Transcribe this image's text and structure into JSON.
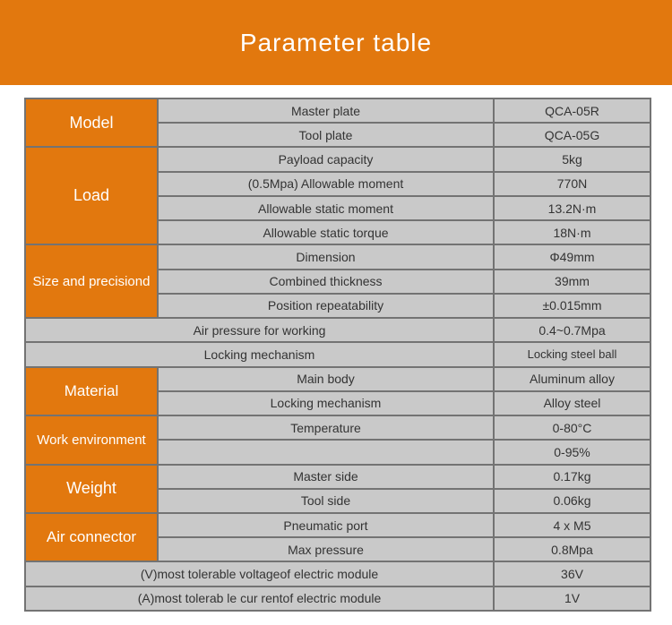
{
  "header": {
    "title": "Parameter table"
  },
  "colors": {
    "accent": "#e2780e",
    "cell_bg": "#c9c9c9",
    "border": "#737373",
    "text": "#333333",
    "title_text": "#ffffff"
  },
  "table": {
    "groups": [
      {
        "label": "Model",
        "rows": [
          {
            "param": "Master plate",
            "value": "QCA-05R"
          },
          {
            "param": "Tool plate",
            "value": "QCA-05G"
          }
        ]
      },
      {
        "label": "Load",
        "rows": [
          {
            "param": "Payload capacity",
            "value": "5kg"
          },
          {
            "param": "(0.5Mpa) Allowable moment",
            "value": "770N"
          },
          {
            "param": "Allowable static moment",
            "value": "13.2N·m"
          },
          {
            "param": "Allowable static torque",
            "value": "18N·m"
          }
        ]
      },
      {
        "label": "Size and precisiond",
        "rows": [
          {
            "param": "Dimension",
            "value": "Φ49mm"
          },
          {
            "param": "Combined thickness",
            "value": "39mm"
          },
          {
            "param": "Position repeatability",
            "value": "±0.015mm"
          }
        ]
      },
      {
        "label": null,
        "rows": [
          {
            "param": "Air pressure for working",
            "value": "0.4~0.7Mpa"
          }
        ]
      },
      {
        "label": null,
        "rows": [
          {
            "param": "Locking mechanism",
            "value": "Locking steel ball"
          }
        ]
      },
      {
        "label": "Material",
        "rows": [
          {
            "param": "Main body",
            "value": "Aluminum alloy"
          },
          {
            "param": "Locking mechanism",
            "value": "Alloy steel"
          }
        ]
      },
      {
        "label": "Work environment",
        "rows": [
          {
            "param": "Temperature",
            "value": "0-80°C"
          },
          {
            "param": "",
            "value": "0-95%"
          }
        ]
      },
      {
        "label": "Weight",
        "rows": [
          {
            "param": "Master side",
            "value": "0.17kg"
          },
          {
            "param": "Tool side",
            "value": "0.06kg"
          }
        ]
      },
      {
        "label": "Air connector",
        "rows": [
          {
            "param": "Pneumatic port",
            "value": "4 x M5"
          },
          {
            "param": "Max pressure",
            "value": "0.8Mpa"
          }
        ]
      },
      {
        "label": null,
        "rows": [
          {
            "param": "(V)most tolerable voltageof electric module",
            "value": "36V"
          }
        ]
      },
      {
        "label": null,
        "rows": [
          {
            "param": "(A)most tolerab le cur rentof electric module",
            "value": "1V"
          }
        ]
      }
    ]
  }
}
